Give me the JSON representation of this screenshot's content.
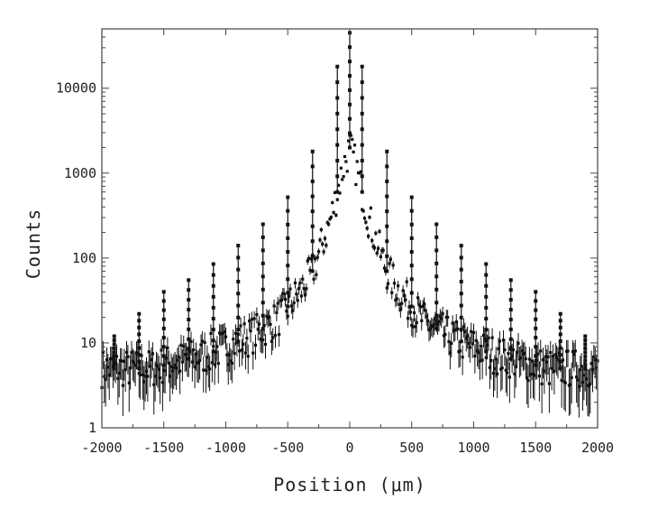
{
  "chart_data": {
    "type": "scatter",
    "title": "",
    "xlabel": "Position (μm)",
    "ylabel": "Counts",
    "xlim": [
      -2000,
      2000
    ],
    "ylim": [
      1,
      50000
    ],
    "y_scale": "log",
    "grid": false,
    "legend": "none",
    "x_ticks": [
      -2000,
      -1500,
      -1000,
      -500,
      0,
      500,
      1000,
      1500,
      2000
    ],
    "x_tick_labels": [
      "-2000",
      "-1500",
      "-1000",
      "-500",
      "0",
      "500",
      "1000",
      "1500",
      "2000"
    ],
    "y_ticks": [
      1,
      10,
      100,
      1000,
      10000
    ],
    "y_tick_labels": [
      "1",
      "10",
      "100",
      "1000",
      "10000"
    ],
    "marker_color": "#111111",
    "series": [
      {
        "peaks": {
          "x": [
            -1900,
            -1700,
            -1500,
            -1300,
            -1100,
            -900,
            -700,
            -500,
            -300,
            -100,
            0,
            100,
            300,
            500,
            700,
            900,
            1100,
            1300,
            1500,
            1700,
            1900
          ],
          "y": [
            12,
            22,
            40,
            55,
            85,
            140,
            250,
            520,
            1800,
            18000,
            45000,
            18000,
            1800,
            520,
            250,
            140,
            85,
            55,
            40,
            22,
            12
          ]
        },
        "background": {
          "x": [
            -2000,
            -1800,
            -1600,
            -1400,
            -1200,
            -1000,
            -800,
            -600,
            -400,
            -300,
            -200,
            -150,
            -100,
            -50,
            0,
            50,
            100,
            150,
            200,
            300,
            400,
            600,
            800,
            1000,
            1200,
            1400,
            1600,
            1800,
            2000
          ],
          "y": [
            5,
            5,
            5,
            6,
            7,
            9,
            12,
            18,
            40,
            70,
            180,
            300,
            600,
            1200,
            2000,
            1200,
            600,
            300,
            180,
            70,
            40,
            18,
            12,
            9,
            7,
            6,
            5,
            5,
            5
          ]
        }
      }
    ]
  }
}
